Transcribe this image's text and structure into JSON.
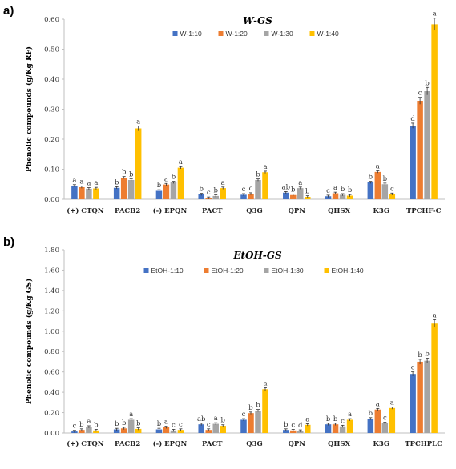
{
  "colors": [
    "#4472C4",
    "#ED7D31",
    "#A5A5A5",
    "#FFC000"
  ],
  "chart_data": [
    {
      "type": "bar",
      "panel": "a)",
      "title": "W-GS",
      "ylabel": "Phenolic compounds (g/Kg RF)",
      "ylim": [
        0,
        0.6
      ],
      "yticks": [
        "0.00",
        "0.10",
        "0.20",
        "0.30",
        "0.40",
        "0.50",
        "0.60"
      ],
      "grid": false,
      "legend_position": "top-center",
      "categories": [
        "(+) CTQN",
        "PACB2",
        "(-) EPQN",
        "PACT",
        "Q3G",
        "QPN",
        "QHSX",
        "K3G",
        "TPCHF-C"
      ],
      "series": [
        {
          "name": "W-1:10",
          "values": [
            0.045,
            0.038,
            0.028,
            0.016,
            0.015,
            0.022,
            0.01,
            0.056,
            0.245
          ],
          "letters": [
            "a",
            "b",
            "b",
            "b",
            "c",
            "ab",
            "c",
            "b",
            "d"
          ]
        },
        {
          "name": "W-1:20",
          "values": [
            0.04,
            0.072,
            0.049,
            0.004,
            0.018,
            0.014,
            0.02,
            0.091,
            0.328
          ],
          "letters": [
            "a",
            "b",
            "a",
            "c",
            "c",
            "b",
            "a",
            "a",
            "c"
          ]
        },
        {
          "name": "W-1:30",
          "values": [
            0.035,
            0.064,
            0.056,
            0.011,
            0.064,
            0.037,
            0.015,
            0.05,
            0.36
          ],
          "letters": [
            "a",
            "b",
            "b",
            "b",
            "b",
            "a",
            "b",
            "b",
            "b"
          ]
        },
        {
          "name": "W-1:40",
          "values": [
            0.036,
            0.236,
            0.105,
            0.037,
            0.09,
            0.008,
            0.012,
            0.017,
            0.583
          ],
          "letters": [
            "a",
            "a",
            "a",
            "a",
            "a",
            "b",
            "b",
            "c",
            "a"
          ]
        }
      ]
    },
    {
      "type": "bar",
      "panel": "b)",
      "title": "EtOH-GS",
      "ylabel": "Phenolic compounds (g/Kg GS)",
      "ylim": [
        0,
        1.8
      ],
      "yticks": [
        "0.00",
        "0.20",
        "0.40",
        "0.60",
        "0.80",
        "1.00",
        "1.20",
        "1.40",
        "1.60",
        "1.80"
      ],
      "grid": false,
      "legend_position": "top-center",
      "categories": [
        "(+) CTQN",
        "PACB2",
        "(-) EPQN",
        "PACT",
        "Q3G",
        "QPN",
        "QHSX",
        "K3G",
        "TPCHPLC"
      ],
      "series": [
        {
          "name": "EtOH-1:10",
          "values": [
            0.015,
            0.035,
            0.035,
            0.085,
            0.13,
            0.03,
            0.085,
            0.14,
            0.58
          ],
          "letters": [
            "c",
            "b",
            "b",
            "ab",
            "c",
            "b",
            "b",
            "b",
            "c"
          ]
        },
        {
          "name": "EtOH-1:20",
          "values": [
            0.03,
            0.045,
            0.055,
            0.03,
            0.195,
            0.025,
            0.085,
            0.23,
            0.7
          ],
          "letters": [
            "b",
            "b",
            "a",
            "c",
            "b",
            "c",
            "b",
            "a",
            "b"
          ]
        },
        {
          "name": "EtOH-1:30",
          "values": [
            0.06,
            0.13,
            0.025,
            0.09,
            0.22,
            0.02,
            0.065,
            0.095,
            0.71
          ],
          "letters": [
            "a",
            "a",
            "c",
            "a",
            "b",
            "d",
            "c",
            "c",
            "b"
          ]
        },
        {
          "name": "EtOH-1:40",
          "values": [
            0.025,
            0.04,
            0.03,
            0.07,
            0.43,
            0.08,
            0.13,
            0.245,
            1.075
          ],
          "letters": [
            "b",
            "b",
            "c",
            "b",
            "a",
            "a",
            "a",
            "a",
            "a"
          ]
        }
      ]
    }
  ]
}
